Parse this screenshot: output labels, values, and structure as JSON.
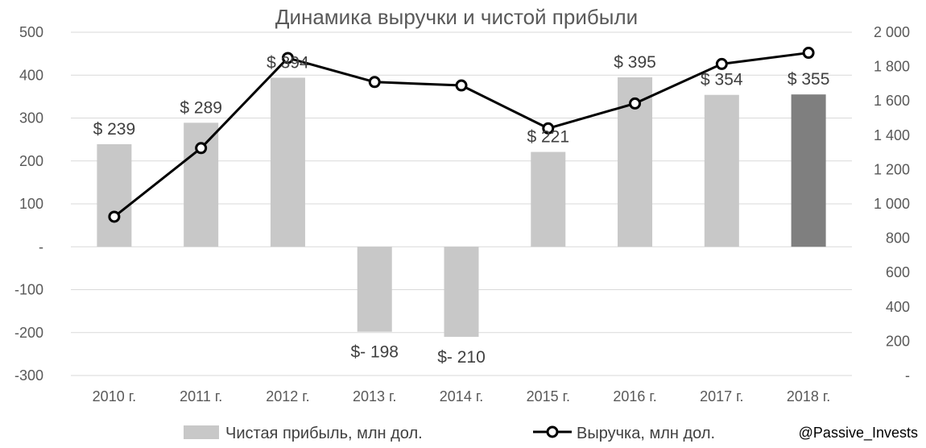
{
  "chart_data": {
    "type": "bar+line",
    "title": "Динамика выручки и чистой прибыли",
    "categories": [
      "2010 г.",
      "2011 г.",
      "2012 г.",
      "2013 г.",
      "2014 г.",
      "2015 г.",
      "2016 г.",
      "2017 г.",
      "2018 г."
    ],
    "series": [
      {
        "name": "Чистая прибыль, млн дол.",
        "type": "bar",
        "axis": "left",
        "values": [
          239,
          289,
          394,
          -198,
          -210,
          221,
          395,
          354,
          355
        ],
        "labels": [
          "$ 239",
          "$ 289",
          "$ 394",
          "$- 198",
          "$- 210",
          "$ 221",
          "$ 395",
          "$ 354",
          "$ 355"
        ],
        "color": "#c8c8c8",
        "highlight_color": "#7f7f7f",
        "highlight_index": 8
      },
      {
        "name": "Выручка, млн дол.",
        "type": "line",
        "axis": "right",
        "values": [
          925,
          1325,
          1850,
          1710,
          1690,
          1440,
          1585,
          1815,
          1880
        ],
        "color": "#000000"
      }
    ],
    "y_left": {
      "min": -300,
      "max": 500,
      "ticks": [
        "500",
        "400",
        "300",
        "200",
        "100",
        "-",
        "-100",
        "-200",
        "-300"
      ]
    },
    "y_right": {
      "min": 0,
      "max": 2000,
      "ticks": [
        "2 000",
        "1 800",
        "1 600",
        "1 400",
        "1 200",
        "1 000",
        "800",
        "600",
        "400",
        "200",
        "-"
      ]
    },
    "grid": true,
    "legend_position": "bottom"
  },
  "credit": "@Passive_Invests"
}
